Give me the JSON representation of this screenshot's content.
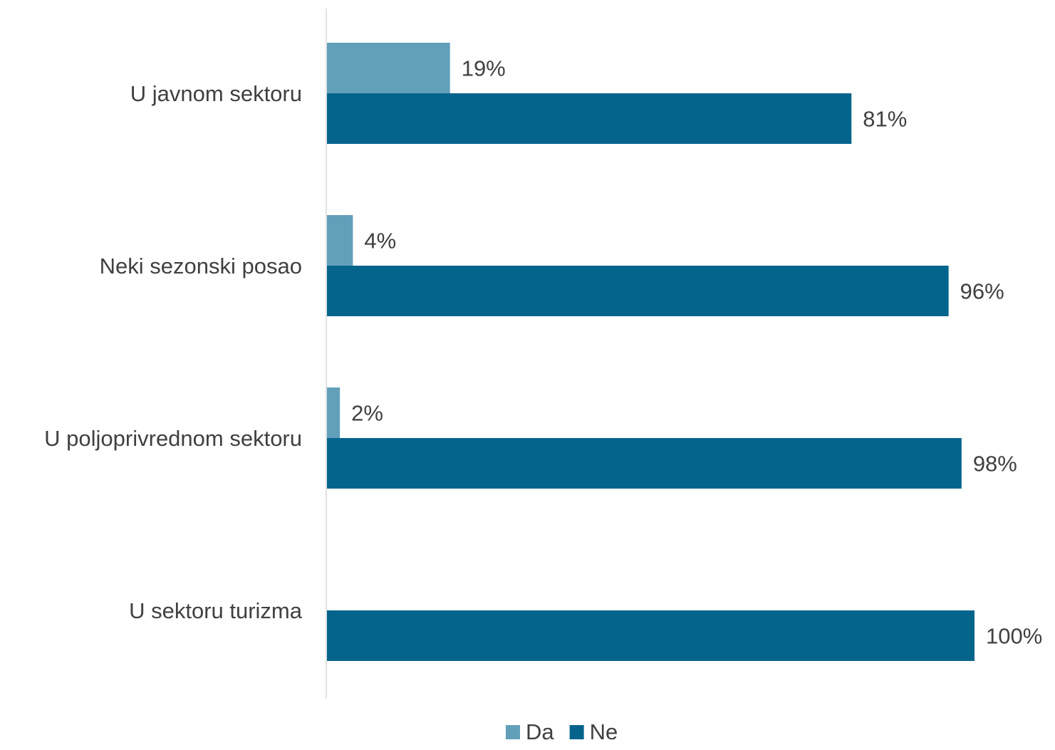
{
  "chart_data": {
    "type": "bar",
    "orientation": "horizontal",
    "categories": [
      "U javnom sektoru",
      "Neki sezonski posao",
      "U poljoprivrednom sektoru",
      "U sektoru turizma"
    ],
    "series": [
      {
        "name": "Da",
        "values": [
          19,
          4,
          2,
          0
        ],
        "labels": [
          "19%",
          "4%",
          "2%",
          ""
        ],
        "color": "#62A0BA"
      },
      {
        "name": "Ne",
        "values": [
          81,
          96,
          98,
          100
        ],
        "labels": [
          "81%",
          "96%",
          "98%",
          "100%"
        ],
        "color": "#05648C"
      }
    ],
    "xlim": [
      0,
      100
    ],
    "grid": false,
    "legend_position": "bottom"
  }
}
